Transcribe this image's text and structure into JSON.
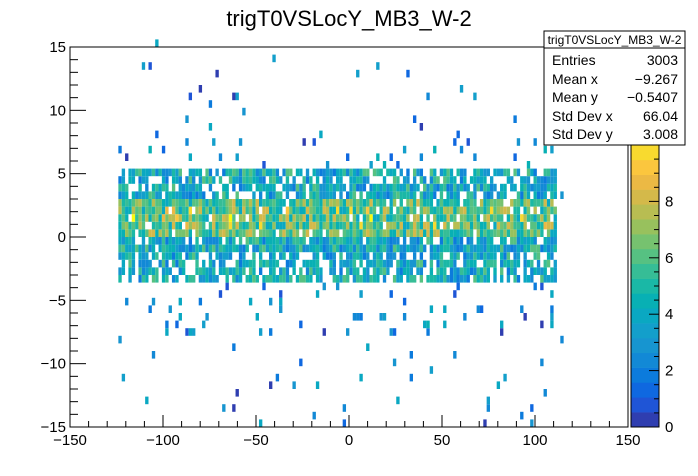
{
  "chart_data": {
    "type": "heatmap",
    "title": "trigT0VSLocY_MB3_W-2",
    "xlabel": "",
    "ylabel": "",
    "xlim": [
      -150,
      150
    ],
    "ylim": [
      -15,
      15
    ],
    "zlim": [
      0,
      10
    ],
    "x_ticks": [
      "−150",
      "−100",
      "−50",
      "0",
      "50",
      "100",
      "150"
    ],
    "x_tick_values": [
      -150,
      -100,
      -50,
      0,
      50,
      100,
      150
    ],
    "y_ticks": [
      "−15",
      "−10",
      "−5",
      "0",
      "5",
      "10",
      "15"
    ],
    "y_tick_values": [
      -15,
      -10,
      -5,
      0,
      5,
      10,
      15
    ],
    "z_ticks": [
      "0",
      "2",
      "4",
      "6",
      "8"
    ],
    "z_tick_values": [
      0,
      2,
      4,
      6,
      8
    ],
    "stats": {
      "title": "trigT0VSLocY_MB3_W-2",
      "rows": [
        {
          "label": "Entries",
          "value": "3003"
        },
        {
          "label": "Mean x",
          "value": "−9.267"
        },
        {
          "label": "Mean y",
          "value": "−0.5407"
        },
        {
          "label": "Std Dev x",
          "value": "66.04"
        },
        {
          "label": "Std Dev y",
          "value": "3.008"
        }
      ]
    },
    "colors": {
      "palette": [
        "#352a87",
        "#2f3eb0",
        "#1f55d6",
        "#0f68e0",
        "#0c7bdc",
        "#1289d6",
        "#1795d0",
        "#139fcb",
        "#0aa8c2",
        "#08b0b4",
        "#1ab8a6",
        "#36bd96",
        "#56c182",
        "#76c26f",
        "#98c15d",
        "#b8bd52",
        "#d4b94a",
        "#ecb944",
        "#fbc63e",
        "#f8da2f",
        "#f9fb0e"
      ]
    }
  }
}
